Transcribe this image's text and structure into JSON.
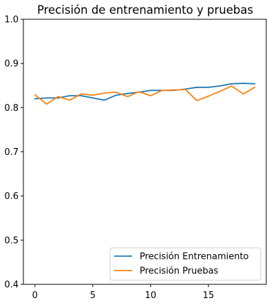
{
  "chart_data": {
    "type": "line",
    "title": "Precisión de entrenamiento y pruebas",
    "xlabel": "",
    "ylabel": "",
    "xlim": [
      -1,
      20
    ],
    "ylim": [
      0.4,
      1.0
    ],
    "xticks": [
      0,
      5,
      10,
      15
    ],
    "yticks": [
      0.4,
      0.5,
      0.6,
      0.7,
      0.8,
      0.9,
      1.0
    ],
    "ytick_labels": [
      "0.4",
      "0.5",
      "0.6",
      "0.7",
      "0.8",
      "0.9",
      "1.0"
    ],
    "legend_position": "lower-right",
    "grid": false,
    "x": [
      0,
      1,
      2,
      3,
      4,
      5,
      6,
      7,
      8,
      9,
      10,
      11,
      12,
      13,
      14,
      15,
      16,
      17,
      18,
      19
    ],
    "series": [
      {
        "name": "Precisión Entrenamiento",
        "color": "#1f77b4",
        "values": [
          0.82,
          0.822,
          0.822,
          0.827,
          0.827,
          0.822,
          0.817,
          0.828,
          0.832,
          0.835,
          0.839,
          0.839,
          0.839,
          0.842,
          0.846,
          0.846,
          0.849,
          0.854,
          0.855,
          0.854
        ]
      },
      {
        "name": "Precisión Pruebas",
        "color": "#ff7f0e",
        "values": [
          0.829,
          0.808,
          0.825,
          0.817,
          0.831,
          0.828,
          0.833,
          0.835,
          0.825,
          0.836,
          0.827,
          0.839,
          0.84,
          0.841,
          0.816,
          0.826,
          0.837,
          0.849,
          0.831,
          0.846
        ]
      }
    ]
  }
}
